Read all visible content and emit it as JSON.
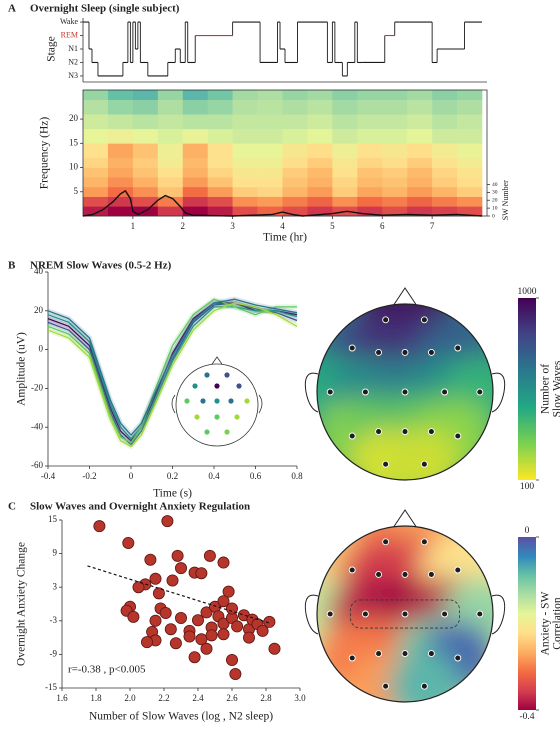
{
  "chart_data": [
    {
      "type": "hypnogram",
      "panel": "A",
      "title": "Overnight Sleep (single subject)",
      "ylabel": "Stage",
      "x": [
        0,
        0.12,
        0.18,
        0.3,
        0.8,
        0.9,
        0.95,
        1.0,
        1.05,
        1.1,
        1.15,
        1.3,
        1.7,
        1.85,
        1.95,
        2.05,
        2.1,
        2.25,
        3.0,
        3.55,
        3.9,
        3.95,
        4.05,
        4.3,
        4.9,
        5.0,
        5.05,
        5.2,
        5.3,
        5.45,
        5.5,
        5.6,
        6.05,
        6.25,
        6.35,
        7.0,
        7.1,
        7.65,
        8.0
      ],
      "values": [
        4,
        2,
        1,
        0,
        1,
        4,
        1,
        4,
        2,
        4,
        1,
        0,
        1,
        2,
        1,
        4,
        1,
        3,
        4,
        1,
        4,
        2,
        1,
        4,
        1,
        4,
        1,
        0,
        1,
        4,
        1,
        1,
        3,
        4,
        4,
        1,
        2,
        4,
        4
      ],
      "xlim": [
        0,
        8.1
      ],
      "ylim": [
        -0.3,
        4.3
      ],
      "yticks": [
        {
          "value": 4,
          "label": "Wake"
        },
        {
          "value": 3,
          "label": "REM"
        },
        {
          "value": 2,
          "label": "N1"
        },
        {
          "value": 1,
          "label": "N2"
        },
        {
          "value": 0,
          "label": "N3"
        }
      ],
      "color": "#1a1a1a",
      "highlight": {
        "value": 3,
        "color": "#c8372d"
      }
    },
    {
      "type": "heatmap",
      "xlabel": "Time (hr)",
      "ylabel": "Frequency (Hz)",
      "xbins": [
        0,
        0.5,
        1,
        1.5,
        2,
        2.5,
        3,
        3.5,
        4,
        4.5,
        5,
        5.5,
        6,
        6.5,
        7,
        7.5,
        8
      ],
      "ybins": [
        0,
        2,
        4,
        6,
        8,
        10,
        12,
        15,
        18,
        21,
        24,
        26
      ],
      "values": [
        [
          0.95,
          1,
          1,
          0.9,
          1,
          0.95,
          0.85,
          0.8,
          0.85,
          0.9,
          0.85,
          0.9,
          0.85,
          0.9,
          0.88,
          0.85
        ],
        [
          0.85,
          0.9,
          0.85,
          0.75,
          0.9,
          0.85,
          0.72,
          0.7,
          0.75,
          0.8,
          0.72,
          0.78,
          0.75,
          0.8,
          0.75,
          0.72
        ],
        [
          0.7,
          0.78,
          0.72,
          0.62,
          0.78,
          0.7,
          0.6,
          0.58,
          0.65,
          0.7,
          0.6,
          0.68,
          0.65,
          0.7,
          0.65,
          0.6
        ],
        [
          0.65,
          0.72,
          0.66,
          0.58,
          0.7,
          0.62,
          0.55,
          0.55,
          0.62,
          0.66,
          0.58,
          0.64,
          0.62,
          0.66,
          0.6,
          0.56
        ],
        [
          0.62,
          0.68,
          0.62,
          0.55,
          0.66,
          0.58,
          0.52,
          0.52,
          0.6,
          0.64,
          0.55,
          0.62,
          0.6,
          0.64,
          0.58,
          0.54
        ],
        [
          0.58,
          0.66,
          0.6,
          0.5,
          0.64,
          0.55,
          0.48,
          0.48,
          0.56,
          0.6,
          0.52,
          0.58,
          0.56,
          0.6,
          0.54,
          0.5
        ],
        [
          0.55,
          0.68,
          0.62,
          0.48,
          0.66,
          0.55,
          0.45,
          0.45,
          0.52,
          0.56,
          0.48,
          0.55,
          0.52,
          0.56,
          0.5,
          0.46
        ],
        [
          0.45,
          0.48,
          0.45,
          0.42,
          0.46,
          0.42,
          0.4,
          0.4,
          0.42,
          0.44,
          0.4,
          0.42,
          0.42,
          0.44,
          0.4,
          0.4
        ],
        [
          0.4,
          0.38,
          0.36,
          0.38,
          0.36,
          0.36,
          0.38,
          0.38,
          0.38,
          0.4,
          0.36,
          0.38,
          0.38,
          0.4,
          0.36,
          0.38
        ],
        [
          0.35,
          0.3,
          0.28,
          0.34,
          0.28,
          0.3,
          0.35,
          0.36,
          0.34,
          0.36,
          0.32,
          0.34,
          0.34,
          0.36,
          0.32,
          0.34
        ],
        [
          0.3,
          0.22,
          0.2,
          0.3,
          0.2,
          0.24,
          0.32,
          0.34,
          0.3,
          0.32,
          0.28,
          0.3,
          0.3,
          0.32,
          0.28,
          0.3
        ]
      ],
      "clim": [
        0,
        1
      ],
      "colormap": [
        "#5e4fa2",
        "#3288bd",
        "#66c2a5",
        "#abdda4",
        "#e6f598",
        "#fee08b",
        "#fdae61",
        "#f46d43",
        "#d53e4f",
        "#9e0142"
      ],
      "xlim": [
        0,
        8.1
      ],
      "ylim": [
        0,
        26
      ],
      "xticks": [
        1,
        2,
        3,
        4,
        5,
        6,
        7
      ],
      "yticks": [
        5,
        10,
        15,
        20
      ],
      "y2lim": [
        0,
        160
      ],
      "y2ticks": [
        0,
        10,
        20,
        30,
        40
      ],
      "y2label": "SW Number",
      "series": [
        {
          "axis": "y2",
          "color": "#111111",
          "x": [
            0,
            0.2,
            0.4,
            0.6,
            0.75,
            0.85,
            0.95,
            1.0,
            1.1,
            1.3,
            1.5,
            1.65,
            1.8,
            1.95,
            2.05,
            2.2,
            3.0,
            3.8,
            4.0,
            4.2,
            4.4,
            5.0,
            5.3,
            5.6,
            6.0,
            6.5,
            7.0,
            7.5,
            8.0
          ],
          "values": [
            0,
            2,
            8,
            18,
            28,
            32,
            22,
            6,
            2,
            8,
            20,
            26,
            22,
            12,
            4,
            1,
            0,
            2,
            5,
            2,
            0,
            3,
            6,
            3,
            1,
            2,
            1,
            2,
            0
          ]
        }
      ]
    },
    {
      "type": "line",
      "panel": "B",
      "title": "NREM Slow Waves  (0.5-2 Hz)",
      "xlabel": "Time (s)",
      "ylabel": "Amplitude (uV)",
      "x": [
        -0.4,
        -0.3,
        -0.2,
        -0.1,
        -0.05,
        0,
        0.05,
        0.1,
        0.2,
        0.3,
        0.4,
        0.5,
        0.6,
        0.7,
        0.8
      ],
      "series": [
        {
          "color": "#440154",
          "values": [
            16,
            12,
            2,
            -30,
            -42,
            -47,
            -40,
            -28,
            -2,
            16,
            24,
            24,
            20,
            20,
            18
          ]
        },
        {
          "color": "#3b528b",
          "values": [
            14,
            10,
            0,
            -32,
            -44,
            -49,
            -42,
            -30,
            -5,
            14,
            23,
            24,
            21,
            19,
            15
          ]
        },
        {
          "color": "#21918c",
          "values": [
            18,
            14,
            4,
            -28,
            -40,
            -46,
            -40,
            -30,
            -6,
            12,
            22,
            22,
            20,
            20,
            17
          ]
        },
        {
          "color": "#5ec962",
          "values": [
            12,
            8,
            -2,
            -34,
            -45,
            -48,
            -40,
            -25,
            2,
            18,
            26,
            22,
            18,
            22,
            22
          ]
        },
        {
          "color": "#a0da39",
          "values": [
            10,
            6,
            -4,
            -36,
            -47,
            -50,
            -44,
            -32,
            -8,
            10,
            20,
            24,
            22,
            18,
            12
          ]
        },
        {
          "color": "#2c728e",
          "values": [
            20,
            16,
            6,
            -26,
            -38,
            -44,
            -38,
            -26,
            -3,
            15,
            24,
            26,
            23,
            21,
            19
          ]
        }
      ],
      "xlim": [
        -0.4,
        0.8
      ],
      "ylim": [
        -60,
        40
      ],
      "xticks": [
        -0.4,
        -0.2,
        0,
        0.2,
        0.4,
        0.6,
        0.8
      ],
      "yticks": [
        -60,
        -40,
        -20,
        0,
        20,
        40
      ]
    },
    {
      "type": "topomap",
      "values": [
        980,
        980,
        720,
        850,
        880,
        860,
        720,
        450,
        560,
        620,
        560,
        420,
        260,
        320,
        360,
        320,
        260,
        160,
        170
      ],
      "clim": [
        100,
        1000
      ],
      "colorbar_ticks": [
        100,
        1000
      ],
      "colorbar_label": [
        "Number of",
        "Slow Waves"
      ],
      "colormap": [
        "#fde725",
        "#7ad151",
        "#22a884",
        "#2a788e",
        "#414487",
        "#440154"
      ]
    },
    {
      "type": "scatter",
      "panel": "C",
      "title": "Slow Waves and Overnight Anxiety Regulation",
      "xlabel": "Number of Slow Waves (log , N2 sleep)",
      "ylabel": "Overnight Anxiety Change",
      "x": [
        1.82,
        1.99,
        2.22,
        2.12,
        2.28,
        2.3,
        2.47,
        2.55,
        2.09,
        2.15,
        2.17,
        2.25,
        2.38,
        2.42,
        2.05,
        2.0,
        1.98,
        2.02,
        2.18,
        2.15,
        2.21,
        2.13,
        2.24,
        2.3,
        2.35,
        2.4,
        2.45,
        2.5,
        2.52,
        2.48,
        2.55,
        2.6,
        2.6,
        2.63,
        2.67,
        2.7,
        2.72,
        2.75,
        2.78,
        2.82,
        2.85,
        2.6,
        2.62,
        2.42,
        2.45,
        2.38,
        2.35,
        2.27,
        2.15,
        2.1,
        2.48,
        2.55,
        2.58,
        2.7,
        2.55
      ],
      "values": [
        13.9,
        10.9,
        14.8,
        7.9,
        8.6,
        6.4,
        8.6,
        7.4,
        3.5,
        4.5,
        1.9,
        4.2,
        5.6,
        5.5,
        3.0,
        -0.5,
        -1.2,
        -2.3,
        -0.8,
        -3.0,
        -1.6,
        -5.0,
        -4.5,
        -2.5,
        -4.8,
        -2.9,
        -1.5,
        -0.5,
        -2.2,
        -4.2,
        -3.5,
        -2.5,
        -0.8,
        -4.0,
        -2.0,
        -4.5,
        -2.8,
        -3.6,
        -4.8,
        -3.2,
        -8.0,
        -10.0,
        -12.5,
        -6.3,
        -8.0,
        -9.5,
        -5.8,
        -7.0,
        -6.5,
        -6.8,
        -5.6,
        -5.4,
        2.2,
        -6.0,
        0.5
      ],
      "color": "#b8352c",
      "fit": {
        "x": [
          1.75,
          2.82
        ],
        "values": [
          6.8,
          -3.4
        ]
      },
      "annotation": "r=-0.38 , p<0.005",
      "xlim": [
        1.6,
        3.0
      ],
      "ylim": [
        -15,
        15
      ],
      "xticks": [
        1.6,
        1.8,
        {
          "value": 2,
          "label": "2.0"
        },
        2.2,
        2.4,
        2.6,
        2.8,
        {
          "value": 3,
          "label": "3.0"
        }
      ],
      "yticks": [
        -15,
        -9,
        -3,
        3,
        9,
        15
      ]
    },
    {
      "type": "topomap",
      "values": [
        -0.3,
        -0.28,
        -0.25,
        -0.35,
        -0.36,
        -0.34,
        -0.22,
        -0.15,
        -0.38,
        -0.4,
        -0.38,
        -0.12,
        -0.3,
        -0.3,
        -0.32,
        -0.1,
        -0.02,
        -0.28,
        -0.08
      ],
      "clim": [
        -0.4,
        0
      ],
      "colorbar_ticks": [
        -0.4,
        0
      ],
      "colorbar_label": [
        "Anxiety - SW",
        "Correlation"
      ],
      "colormap": [
        "#9e0142",
        "#d53e4f",
        "#f46d43",
        "#fdae61",
        "#fee08b",
        "#e6f598",
        "#abdda4",
        "#66c2a5",
        "#3288bd",
        "#5e4fa2"
      ]
    }
  ]
}
